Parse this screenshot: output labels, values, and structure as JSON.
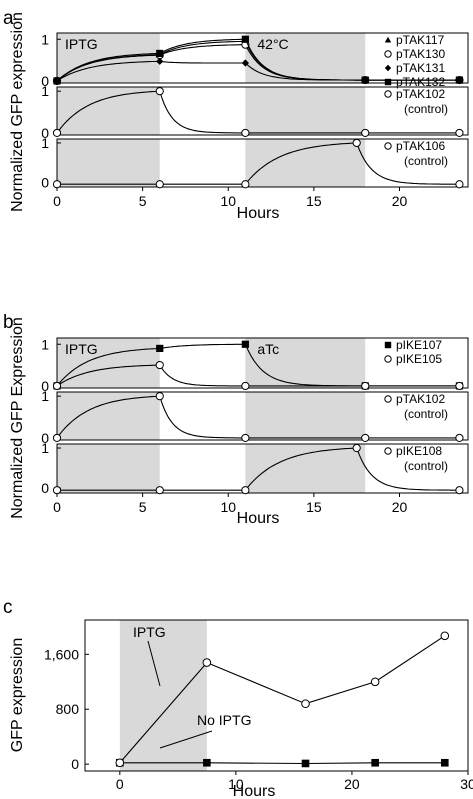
{
  "panel_letters": [
    "a",
    "b",
    "c"
  ],
  "chart_data": [
    {
      "panel": "a",
      "type": "line",
      "shared_ylabel": "Normalized GFP expression",
      "xlabel": "Hours",
      "xlim": [
        0,
        24
      ],
      "xticks": [
        0,
        5,
        10,
        15,
        20
      ],
      "subplots": [
        {
          "ylim": [
            -0.05,
            1.15
          ],
          "yticks": [
            0,
            1
          ],
          "shaded": [
            {
              "from": 0,
              "to": 6,
              "label": "IPTG"
            },
            {
              "from": 11,
              "to": 18,
              "label": "42°C"
            }
          ],
          "legend": [
            {
              "label": "pTAK117",
              "marker": "triangle"
            },
            {
              "label": "pTAK130",
              "marker": "circle-open"
            },
            {
              "label": "pTAK131",
              "marker": "diamond"
            },
            {
              "label": "pTAK132",
              "marker": "square"
            }
          ],
          "series": [
            {
              "name": "pTAK117",
              "marker": "triangle",
              "x": [
                0,
                6,
                11,
                18,
                23.5
              ],
              "y": [
                0,
                0.63,
                0.95,
                0.02,
                0.02
              ]
            },
            {
              "name": "pTAK130",
              "marker": "circle-open",
              "x": [
                0,
                6,
                11,
                18,
                23.5
              ],
              "y": [
                0,
                0.62,
                0.87,
                0.02,
                0.02
              ]
            },
            {
              "name": "pTAK131",
              "marker": "diamond",
              "x": [
                0,
                6,
                11,
                18,
                23.5
              ],
              "y": [
                0,
                0.47,
                0.43,
                0.02,
                0.02
              ]
            },
            {
              "name": "pTAK132",
              "marker": "square",
              "x": [
                0,
                6,
                11,
                18,
                23.5
              ],
              "y": [
                0,
                0.66,
                1.0,
                0.02,
                0.02
              ]
            }
          ]
        },
        {
          "ylim": [
            -0.05,
            1.1
          ],
          "yticks": [
            0,
            1
          ],
          "shaded": [
            {
              "from": 0,
              "to": 6
            },
            {
              "from": 11,
              "to": 18
            }
          ],
          "legend": [
            {
              "label": "pTAK102",
              "label2": "(control)",
              "marker": "circle-open"
            }
          ],
          "series": [
            {
              "name": "pTAK102",
              "marker": "circle-open",
              "x": [
                0,
                6,
                11,
                18,
                23.5
              ],
              "y": [
                0,
                1.0,
                0.0,
                0.0,
                0.0
              ]
            }
          ]
        },
        {
          "ylim": [
            -0.12,
            1.1
          ],
          "yticks": [
            0,
            1
          ],
          "shaded": [
            {
              "from": 0,
              "to": 6
            },
            {
              "from": 11,
              "to": 18
            }
          ],
          "legend": [
            {
              "label": "pTAK106",
              "label2": "(control)",
              "marker": "circle-open"
            }
          ],
          "series": [
            {
              "name": "pTAK106",
              "marker": "circle-open",
              "x": [
                0,
                6,
                11,
                17.5,
                23.5
              ],
              "y": [
                -0.05,
                -0.05,
                -0.05,
                1.0,
                -0.05
              ]
            }
          ]
        }
      ]
    },
    {
      "panel": "b",
      "type": "line",
      "shared_ylabel": "Normalized GFP Expression",
      "xlabel": "Hours",
      "xlim": [
        0,
        24
      ],
      "xticks": [
        0,
        5,
        10,
        15,
        20
      ],
      "subplots": [
        {
          "ylim": [
            -0.05,
            1.15
          ],
          "yticks": [
            0,
            1
          ],
          "shaded": [
            {
              "from": 0,
              "to": 6,
              "label": "IPTG"
            },
            {
              "from": 11,
              "to": 18,
              "label": "aTc"
            }
          ],
          "legend": [
            {
              "label": "pIKE107",
              "marker": "square"
            },
            {
              "label": "pIKE105",
              "marker": "circle-open"
            }
          ],
          "series": [
            {
              "name": "pIKE107",
              "marker": "square",
              "x": [
                0,
                6,
                11,
                18,
                23.5
              ],
              "y": [
                0,
                0.9,
                1.0,
                0.0,
                0.0
              ]
            },
            {
              "name": "pIKE105",
              "marker": "circle-open",
              "x": [
                0,
                6,
                11,
                18,
                23.5
              ],
              "y": [
                0,
                0.5,
                0.0,
                0.0,
                0.0
              ]
            }
          ]
        },
        {
          "ylim": [
            -0.05,
            1.1
          ],
          "yticks": [
            0,
            1
          ],
          "shaded": [
            {
              "from": 0,
              "to": 6
            },
            {
              "from": 11,
              "to": 18
            }
          ],
          "legend": [
            {
              "label": "pTAK102",
              "label2": "(control)",
              "marker": "circle-open"
            }
          ],
          "series": [
            {
              "name": "pTAK102",
              "marker": "circle-open",
              "x": [
                0,
                6,
                11,
                18,
                23.5
              ],
              "y": [
                0,
                1.0,
                0.0,
                0.0,
                0.0
              ]
            }
          ]
        },
        {
          "ylim": [
            -0.12,
            1.1
          ],
          "yticks": [
            0,
            1
          ],
          "shaded": [
            {
              "from": 0,
              "to": 6
            },
            {
              "from": 11,
              "to": 18
            }
          ],
          "legend": [
            {
              "label": "pIKE108",
              "label2": "(control)",
              "marker": "circle-open"
            }
          ],
          "series": [
            {
              "name": "pIKE108",
              "marker": "circle-open",
              "x": [
                0,
                6,
                11,
                17.5,
                23.5
              ],
              "y": [
                -0.05,
                -0.05,
                -0.05,
                1.0,
                -0.05
              ]
            }
          ]
        }
      ]
    },
    {
      "panel": "c",
      "type": "line",
      "xlabel": "Hours",
      "ylabel": "GFP expression",
      "xlim": [
        -3,
        30
      ],
      "ylim": [
        -100,
        2100
      ],
      "xticks": [
        0,
        10,
        20,
        30
      ],
      "yticks": [
        0,
        800,
        1600
      ],
      "ytick_labels": [
        "0",
        "800",
        "1,600"
      ],
      "shaded": [
        {
          "from": 0,
          "to": 7.5
        }
      ],
      "annotations": [
        "IPTG",
        "No IPTG"
      ],
      "series": [
        {
          "name": "IPTG",
          "marker": "circle-open",
          "x": [
            0,
            7.5,
            16,
            22,
            28
          ],
          "y": [
            20,
            1480,
            880,
            1200,
            1870
          ]
        },
        {
          "name": "No IPTG",
          "marker": "square",
          "x": [
            0,
            7.5,
            16,
            22,
            28
          ],
          "y": [
            20,
            20,
            10,
            20,
            20
          ]
        }
      ]
    }
  ]
}
